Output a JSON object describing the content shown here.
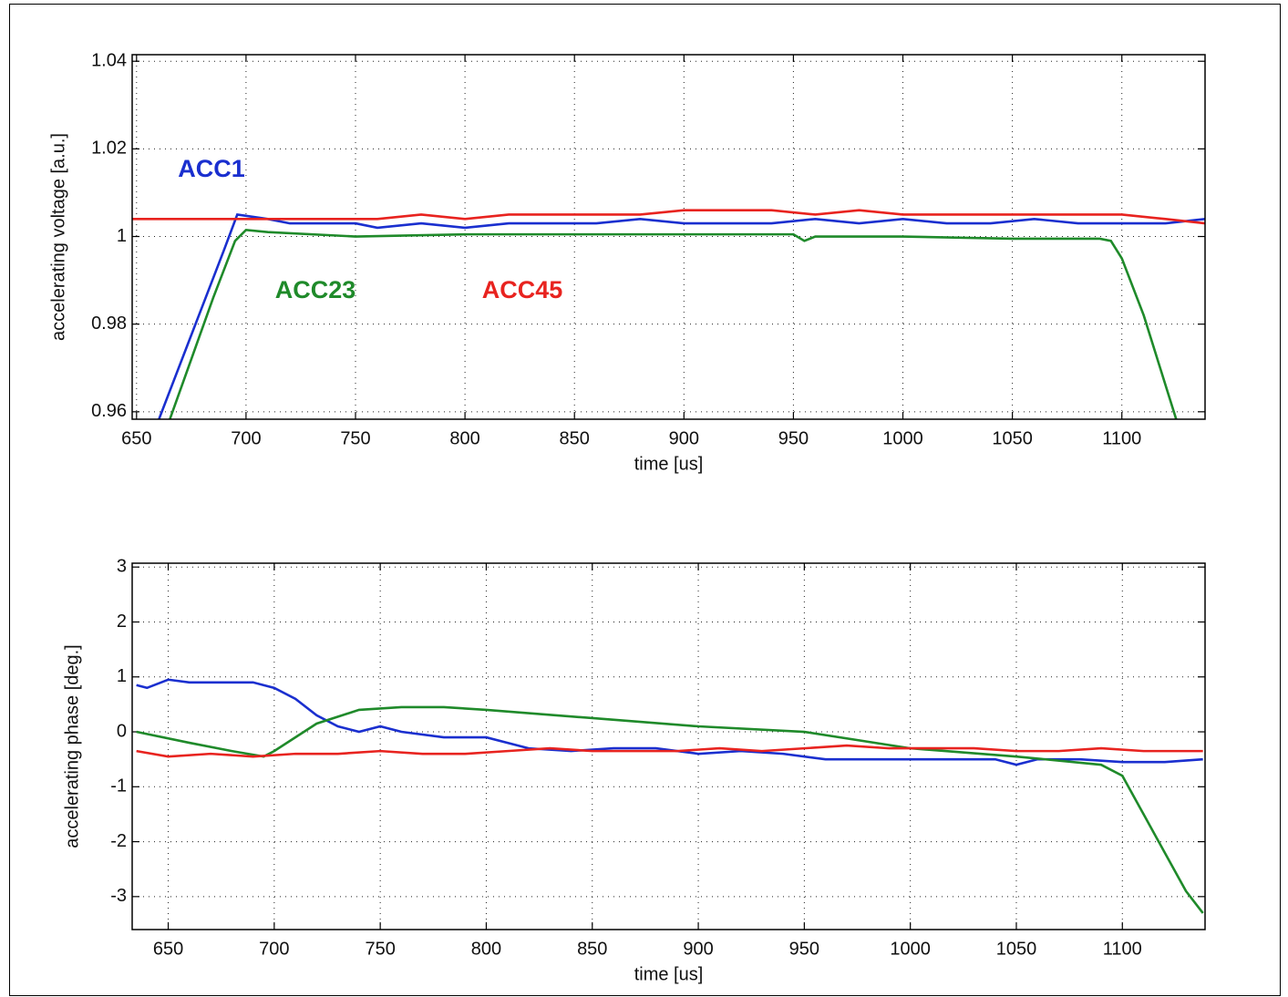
{
  "chart_data": [
    {
      "type": "line",
      "ylabel": "accelerating voltage [a.u.]",
      "xlabel": "time [us]",
      "xlim": [
        648,
        1138
      ],
      "ylim": [
        0.9583,
        1.0415
      ],
      "xticks": [
        650,
        700,
        750,
        800,
        850,
        900,
        950,
        1000,
        1050,
        1100
      ],
      "yticks": [
        0.96,
        0.98,
        1,
        1.02,
        1.04
      ],
      "grid": true,
      "series": [
        {
          "name": "ACC1",
          "color": "#1a2fcf",
          "x": [
            660,
            670,
            680,
            690,
            696,
            710,
            720,
            730,
            740,
            750,
            760,
            780,
            800,
            820,
            840,
            860,
            880,
            900,
            920,
            940,
            960,
            980,
            1000,
            1020,
            1040,
            1060,
            1080,
            1100,
            1120,
            1138
          ],
          "values": [
            0.958,
            0.971,
            0.984,
            0.997,
            1.005,
            1.004,
            1.003,
            1.003,
            1.003,
            1.003,
            1.002,
            1.003,
            1.002,
            1.003,
            1.003,
            1.003,
            1.004,
            1.003,
            1.003,
            1.003,
            1.004,
            1.003,
            1.004,
            1.003,
            1.003,
            1.004,
            1.003,
            1.003,
            1.003,
            1.004
          ]
        },
        {
          "name": "ACC23",
          "color": "#1f8a2a",
          "x": [
            665,
            675,
            685,
            695,
            700,
            710,
            750,
            800,
            850,
            900,
            950,
            955,
            960,
            1000,
            1050,
            1090,
            1095,
            1100,
            1110,
            1120,
            1125
          ],
          "values": [
            0.958,
            0.972,
            0.986,
            0.999,
            1.0015,
            1.001,
            1.0,
            1.0005,
            1.0005,
            1.0005,
            1.0005,
            0.999,
            1.0,
            1.0,
            0.9995,
            0.9995,
            0.999,
            0.995,
            0.982,
            0.966,
            0.958
          ]
        },
        {
          "name": "ACC45",
          "color": "#e8231f",
          "x": [
            648,
            660,
            680,
            700,
            720,
            740,
            760,
            780,
            800,
            820,
            840,
            860,
            880,
            900,
            920,
            940,
            960,
            980,
            1000,
            1020,
            1040,
            1060,
            1080,
            1100,
            1120,
            1138
          ],
          "values": [
            1.004,
            1.004,
            1.004,
            1.004,
            1.004,
            1.004,
            1.004,
            1.005,
            1.004,
            1.005,
            1.005,
            1.005,
            1.005,
            1.006,
            1.006,
            1.006,
            1.005,
            1.006,
            1.005,
            1.005,
            1.005,
            1.005,
            1.005,
            1.005,
            1.004,
            1.003
          ]
        }
      ]
    },
    {
      "type": "line",
      "ylabel": "accelerating phase [deg.]",
      "xlabel": "time [us]",
      "xlim": [
        633,
        1139
      ],
      "ylim": [
        -3.6,
        3.07
      ],
      "xticks": [
        650,
        700,
        750,
        800,
        850,
        900,
        950,
        1000,
        1050,
        1100
      ],
      "yticks": [
        -3,
        -2,
        -1,
        0,
        1,
        2,
        3
      ],
      "grid": true,
      "series": [
        {
          "color": "#1a2fcf",
          "x": [
            635,
            640,
            650,
            660,
            670,
            680,
            690,
            700,
            710,
            720,
            730,
            740,
            750,
            760,
            780,
            800,
            820,
            840,
            860,
            880,
            900,
            920,
            940,
            960,
            980,
            1000,
            1020,
            1040,
            1050,
            1060,
            1080,
            1100,
            1120,
            1138
          ],
          "values": [
            0.85,
            0.8,
            0.95,
            0.9,
            0.9,
            0.9,
            0.9,
            0.8,
            0.6,
            0.3,
            0.1,
            0.0,
            0.1,
            0.0,
            -0.1,
            -0.1,
            -0.3,
            -0.35,
            -0.3,
            -0.3,
            -0.4,
            -0.35,
            -0.4,
            -0.5,
            -0.5,
            -0.5,
            -0.5,
            -0.5,
            -0.6,
            -0.5,
            -0.5,
            -0.55,
            -0.55,
            -0.5
          ]
        },
        {
          "color": "#1f8a2a",
          "x": [
            635,
            660,
            680,
            695,
            700,
            720,
            740,
            760,
            780,
            800,
            850,
            900,
            950,
            1000,
            1050,
            1090,
            1100,
            1110,
            1120,
            1130,
            1138
          ],
          "values": [
            0.0,
            -0.2,
            -0.35,
            -0.45,
            -0.35,
            0.15,
            0.4,
            0.45,
            0.45,
            0.4,
            0.25,
            0.1,
            0.0,
            -0.3,
            -0.45,
            -0.6,
            -0.8,
            -1.5,
            -2.2,
            -2.9,
            -3.3
          ]
        },
        {
          "color": "#e8231f",
          "x": [
            635,
            650,
            670,
            690,
            710,
            730,
            750,
            770,
            790,
            810,
            830,
            850,
            870,
            890,
            910,
            930,
            950,
            970,
            990,
            1010,
            1030,
            1050,
            1070,
            1090,
            1110,
            1138
          ],
          "values": [
            -0.35,
            -0.45,
            -0.4,
            -0.45,
            -0.4,
            -0.4,
            -0.35,
            -0.4,
            -0.4,
            -0.35,
            -0.3,
            -0.35,
            -0.35,
            -0.35,
            -0.3,
            -0.35,
            -0.3,
            -0.25,
            -0.3,
            -0.3,
            -0.3,
            -0.35,
            -0.35,
            -0.3,
            -0.35,
            -0.35
          ]
        }
      ]
    }
  ]
}
